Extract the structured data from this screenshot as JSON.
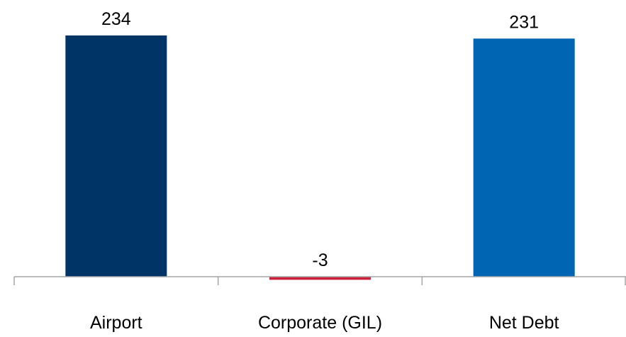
{
  "chart_data": {
    "type": "bar",
    "title": "",
    "xlabel": "",
    "ylabel": "",
    "categories": [
      "Airport",
      "Corporate (GIL)",
      "Net Debt"
    ],
    "values": [
      234,
      -3,
      231
    ],
    "data_labels": [
      "234",
      "-3",
      "231"
    ],
    "colors": [
      "#003366",
      "#cc1f3a",
      "#0065b3"
    ],
    "ylim": [
      -3,
      234
    ],
    "grid": false,
    "legend": "none",
    "axis_color": "#a6a6a6"
  }
}
